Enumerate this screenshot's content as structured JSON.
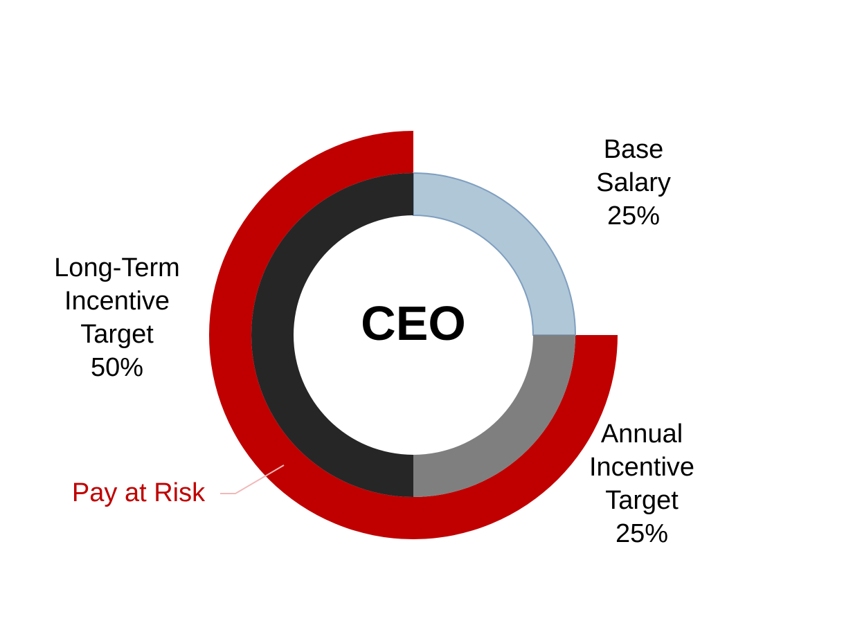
{
  "chart_data": {
    "type": "pie",
    "center_label": "CEO",
    "segments": [
      {
        "label_lines": [
          "Base",
          "Salary",
          "25%"
        ],
        "value": 25,
        "color": "#b0c7d8"
      },
      {
        "label_lines": [
          "Annual",
          "Incentive",
          "Target",
          "25%"
        ],
        "value": 25,
        "color": "#7f7f7f"
      },
      {
        "label_lines": [
          "Long-Term",
          "Incentive",
          "Target",
          "50%"
        ],
        "value": 50,
        "color": "#262626"
      }
    ],
    "outer_band": {
      "label": "Pay at Risk",
      "value": 75,
      "color": "#c00000"
    }
  }
}
